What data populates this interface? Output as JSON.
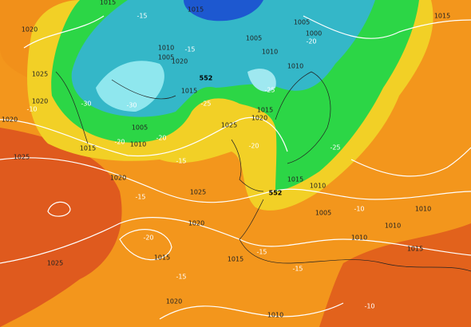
{
  "isobar_labels": [
    "1015",
    "1015",
    "1015",
    "1020",
    "1005",
    "1005",
    "1000",
    "1010",
    "1010",
    "1025",
    "1020",
    "1020",
    "1010",
    "1005",
    "1020",
    "1015",
    "1005",
    "1010",
    "1015",
    "1025",
    "1025",
    "1020",
    "1015",
    "1020",
    "1025",
    "1015",
    "1010",
    "1005",
    "1010",
    "1010",
    "1010",
    "1020",
    "1015",
    "1015",
    "1025",
    "1015",
    "1010",
    "1020"
  ],
  "temperature_labels": [
    "-15",
    "-15",
    "-15",
    "-15",
    "-15",
    "-20",
    "-15",
    "-15",
    "-20",
    "-20",
    "-20",
    "-20",
    "-25",
    "-25",
    "-25",
    "-30",
    "-30",
    "-10",
    "-10",
    "-10"
  ],
  "height_labels": [
    "552",
    "552"
  ]
}
